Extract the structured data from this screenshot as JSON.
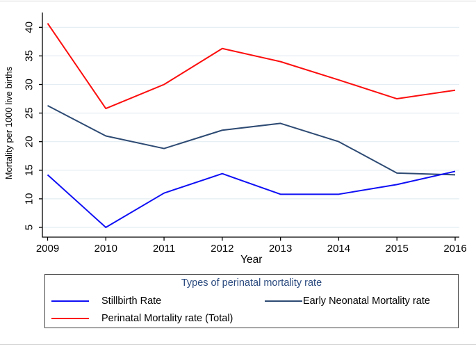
{
  "chart_data": {
    "type": "line",
    "x": [
      2009,
      2010,
      2011,
      2012,
      2013,
      2014,
      2015,
      2016
    ],
    "series": [
      {
        "name": "Stillbirth Rate",
        "color": "#0f0ff5",
        "values": [
          14.2,
          5.0,
          11.0,
          14.4,
          10.8,
          10.8,
          12.5,
          14.8
        ]
      },
      {
        "name": "Early Neonatal Mortality rate",
        "color": "#2d4a73",
        "values": [
          26.3,
          21.0,
          18.8,
          22.0,
          23.2,
          20.0,
          14.5,
          14.2
        ]
      },
      {
        "name": "Perinatal Mortality rate (Total)",
        "color": "#fc0d0d",
        "values": [
          40.7,
          25.8,
          30.0,
          36.3,
          34.0,
          30.8,
          27.5,
          29.0
        ]
      }
    ],
    "title": "",
    "xlabel": "Year",
    "ylabel": "Mortality per 1000 live births",
    "ylim": [
      5,
      40
    ],
    "yticks": [
      5,
      10,
      15,
      20,
      25,
      30,
      35,
      40
    ],
    "grid": true,
    "grid_color": "#e3edf3",
    "axis_color": "#000000",
    "legend": {
      "position": "bottom",
      "title": "Types of perinatal mortality rate",
      "title_color": "#29497e",
      "border_color": "#3f3f3f"
    }
  }
}
